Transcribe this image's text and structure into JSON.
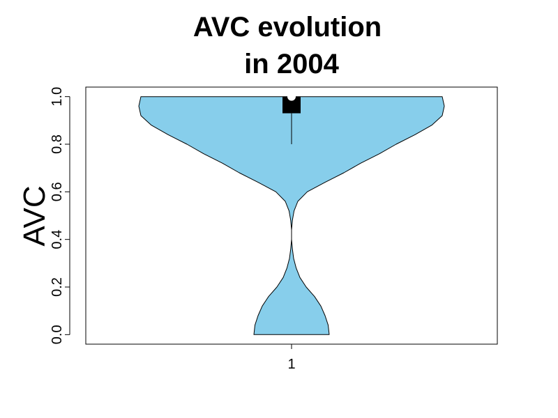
{
  "chart_data": {
    "type": "violin",
    "title_lines": [
      "AVC evolution",
      "in 2004"
    ],
    "xlabel": "",
    "ylabel": "AVC",
    "categories": [
      "1"
    ],
    "ylim": [
      -0.04,
      1.04
    ],
    "yticks": [
      "0.0",
      "0.2",
      "0.4",
      "0.6",
      "0.8",
      "1.0"
    ],
    "ytick_values": [
      0,
      0.2,
      0.4,
      0.6,
      0.8,
      1.0
    ],
    "grid": false,
    "colors": {
      "fill": "#87CEEB",
      "outline": "#000000",
      "box": "#000000",
      "median": "#ffffff"
    },
    "violin": {
      "min": 0.0,
      "max": 1.0,
      "whisker_low": 0.8,
      "q1": 0.93,
      "median": 1.0,
      "q3": 1.0,
      "density_halfwidth": [
        [
          0.0,
          0.18
        ],
        [
          0.04,
          0.175
        ],
        [
          0.08,
          0.16
        ],
        [
          0.12,
          0.14
        ],
        [
          0.16,
          0.11
        ],
        [
          0.2,
          0.07
        ],
        [
          0.24,
          0.04
        ],
        [
          0.28,
          0.022
        ],
        [
          0.32,
          0.01
        ],
        [
          0.36,
          0.004
        ],
        [
          0.4,
          0.0
        ],
        [
          0.44,
          0.0
        ],
        [
          0.48,
          0.004
        ],
        [
          0.52,
          0.012
        ],
        [
          0.56,
          0.03
        ],
        [
          0.6,
          0.075
        ],
        [
          0.64,
          0.16
        ],
        [
          0.68,
          0.25
        ],
        [
          0.72,
          0.33
        ],
        [
          0.76,
          0.42
        ],
        [
          0.8,
          0.5
        ],
        [
          0.84,
          0.59
        ],
        [
          0.88,
          0.67
        ],
        [
          0.92,
          0.72
        ],
        [
          0.96,
          0.73
        ],
        [
          0.98,
          0.725
        ],
        [
          1.0,
          0.72
        ]
      ]
    }
  }
}
